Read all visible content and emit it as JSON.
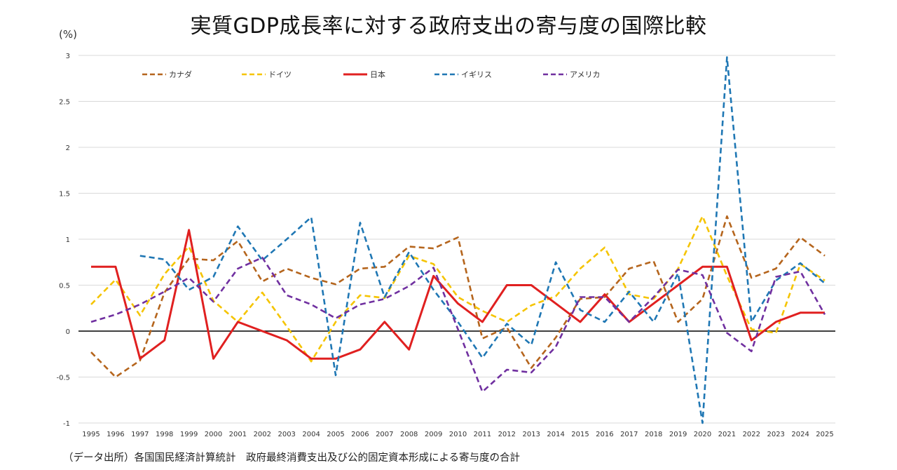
{
  "title": "実質GDP成長率に対する政府支出の寄与度の国際比較",
  "unit": "(%)",
  "source": "（データ出所）各国国民経済計算統計　政府最終消費支出及び公的固定資本形成による寄与度の合計",
  "chart_data": {
    "type": "line",
    "title": "実質GDP成長率に対する政府支出の寄与度の国際比較",
    "ylabel": "(%)",
    "ylim": [
      -1,
      3
    ],
    "yticks": [
      -1,
      -0.5,
      0,
      0.5,
      1,
      1.5,
      2,
      2.5,
      3
    ],
    "grid": true,
    "legend_position": "top",
    "x": [
      1995,
      1996,
      1997,
      1998,
      1999,
      2000,
      2001,
      2002,
      2003,
      2004,
      2005,
      2006,
      2007,
      2008,
      2009,
      2010,
      2011,
      2012,
      2013,
      2014,
      2015,
      2016,
      2017,
      2018,
      2019,
      2020,
      2021,
      2022,
      2023,
      2024,
      2025
    ],
    "series": [
      {
        "name": "カナダ",
        "color": "#b5651d",
        "style": "dashed",
        "values": [
          -0.23,
          -0.5,
          -0.32,
          0.42,
          0.79,
          0.77,
          0.98,
          0.54,
          0.68,
          0.58,
          0.51,
          0.68,
          0.7,
          0.92,
          0.9,
          1.02,
          -0.08,
          0.04,
          -0.4,
          -0.07,
          0.35,
          0.37,
          0.68,
          0.76,
          0.1,
          0.35,
          1.25,
          0.58,
          0.68,
          1.02,
          0.82
        ]
      },
      {
        "name": "ドイツ",
        "color": "#f5c400",
        "style": "dashed",
        "values": [
          0.29,
          0.56,
          0.17,
          0.62,
          0.92,
          0.33,
          0.1,
          0.42,
          0.05,
          -0.33,
          0.1,
          0.39,
          0.36,
          0.82,
          0.73,
          0.37,
          0.22,
          0.1,
          0.28,
          0.38,
          0.68,
          0.91,
          0.4,
          0.35,
          0.68,
          1.25,
          0.6,
          0.02,
          -0.02,
          0.73,
          0.55
        ]
      },
      {
        "name": "日本",
        "color": "#e02020",
        "style": "solid",
        "values": [
          0.7,
          0.7,
          -0.3,
          -0.1,
          1.1,
          -0.3,
          0.1,
          0.0,
          -0.1,
          -0.3,
          -0.3,
          -0.2,
          0.1,
          -0.2,
          0.6,
          0.3,
          0.1,
          0.5,
          0.5,
          0.3,
          0.1,
          0.4,
          0.1,
          0.3,
          0.5,
          0.7,
          0.7,
          -0.1,
          0.1,
          0.2,
          0.2
        ]
      },
      {
        "name": "イギリス",
        "color": "#1f77b4",
        "style": "dashed",
        "values": [
          null,
          null,
          0.82,
          0.78,
          0.45,
          0.59,
          1.14,
          0.77,
          1.0,
          1.24,
          -0.48,
          1.18,
          0.37,
          0.86,
          0.45,
          0.1,
          -0.29,
          0.08,
          -0.15,
          0.75,
          0.23,
          0.1,
          0.43,
          0.1,
          0.63,
          -1.0,
          2.98,
          0.1,
          0.55,
          0.74,
          0.52
        ]
      },
      {
        "name": "アメリカ",
        "color": "#7030a0",
        "style": "dashed",
        "values": [
          0.1,
          0.18,
          0.29,
          0.43,
          0.58,
          0.32,
          0.68,
          0.8,
          0.39,
          0.29,
          0.14,
          0.29,
          0.35,
          0.49,
          0.69,
          0.02,
          -0.66,
          -0.42,
          -0.45,
          -0.17,
          0.37,
          0.37,
          0.1,
          0.37,
          0.67,
          0.61,
          -0.02,
          -0.22,
          0.59,
          0.65,
          0.18
        ]
      }
    ]
  }
}
